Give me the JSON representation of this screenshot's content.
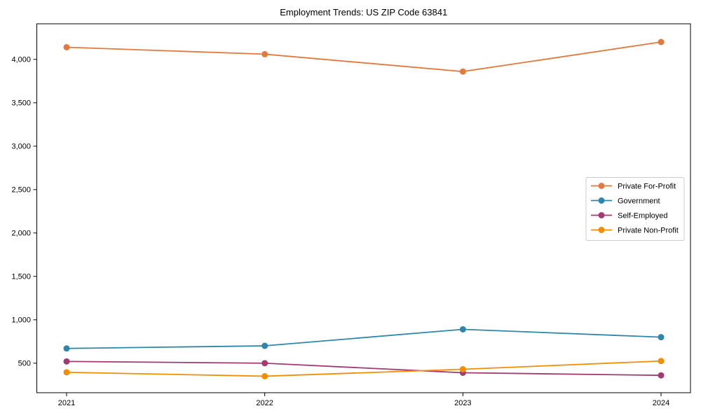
{
  "chart_data": {
    "type": "line",
    "title": "Employment Trends: US ZIP Code 63841",
    "xlabel": "",
    "ylabel": "",
    "x": [
      2021,
      2022,
      2023,
      2024
    ],
    "xtick_labels": [
      "2021",
      "2022",
      "2023",
      "2024"
    ],
    "series": [
      {
        "name": "Private For-Profit",
        "color": "#E2793E",
        "values": [
          4140,
          4060,
          3860,
          4200
        ]
      },
      {
        "name": "Government",
        "color": "#2E86AB",
        "values": [
          670,
          700,
          890,
          800
        ]
      },
      {
        "name": "Self-Employed",
        "color": "#A23B72",
        "values": [
          520,
          500,
          390,
          360
        ]
      },
      {
        "name": "Private Non-Profit",
        "color": "#F18F01",
        "values": [
          395,
          350,
          430,
          525
        ]
      }
    ],
    "ylim": [
      160,
      4410
    ],
    "yticks": [
      500,
      1000,
      1500,
      2000,
      2500,
      3000,
      3500,
      4000
    ],
    "ytick_labels": [
      "500",
      "1,000",
      "1,500",
      "2,000",
      "2,500",
      "3,000",
      "3,500",
      "4,000"
    ],
    "grid": false,
    "legend_position": "center-right",
    "marker": "circle",
    "axis_color": "#000000",
    "legend_border_color": "#cccccc",
    "background_color": "#ffffff"
  }
}
